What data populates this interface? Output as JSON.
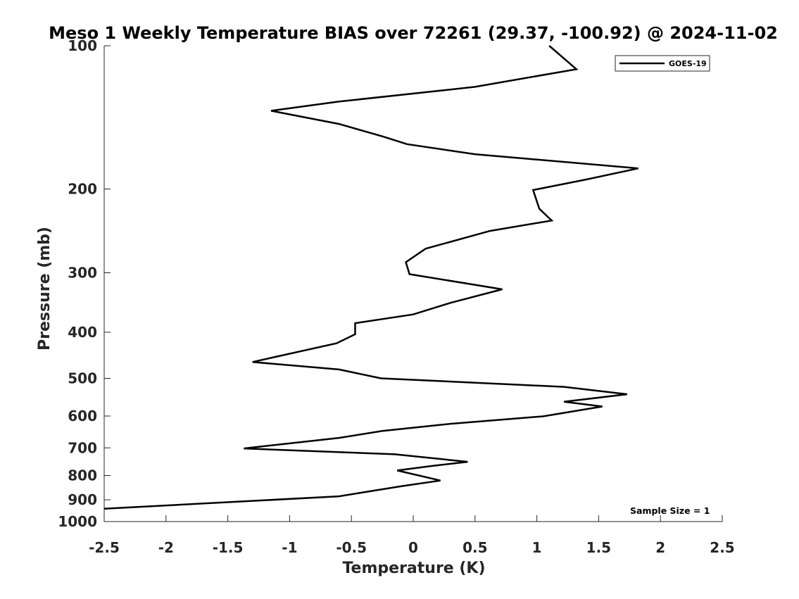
{
  "chart_data": {
    "type": "line",
    "title": "Meso 1 Weekly Temperature BIAS over 72261 (29.37, -100.92) @ 2024-11-02",
    "xlabel": "Temperature (K)",
    "ylabel": "Pressure (mb)",
    "xlim": [
      -2.5,
      2.5
    ],
    "ylim": [
      100,
      1000
    ],
    "y_scale": "log",
    "y_reversed": true,
    "x_ticks": [
      -2.5,
      -2,
      -1.5,
      -1,
      -0.5,
      0,
      0.5,
      1,
      1.5,
      2,
      2.5
    ],
    "x_tick_labels": [
      "-2.5",
      "-2",
      "-1.5",
      "-1",
      "-0.5",
      "0",
      "0.5",
      "1",
      "1.5",
      "2",
      "2.5"
    ],
    "y_ticks": [
      100,
      200,
      300,
      400,
      500,
      600,
      700,
      800,
      900,
      1000
    ],
    "y_tick_labels": [
      "100",
      "200",
      "300",
      "400",
      "500",
      "600",
      "700",
      "800",
      "900",
      "1000"
    ],
    "grid": false,
    "legend_position": "top-right",
    "annotation": "Sample Size = 1",
    "line_color": "#000000",
    "series": [
      {
        "name": "GOES-19",
        "color": "#000000",
        "points": [
          {
            "x": 1.1,
            "y": 100
          },
          {
            "x": 1.32,
            "y": 112
          },
          {
            "x": 0.5,
            "y": 122
          },
          {
            "x": -0.6,
            "y": 131
          },
          {
            "x": -1.15,
            "y": 137
          },
          {
            "x": -0.6,
            "y": 146
          },
          {
            "x": -0.25,
            "y": 155
          },
          {
            "x": -0.05,
            "y": 161
          },
          {
            "x": 0.5,
            "y": 169
          },
          {
            "x": 1.82,
            "y": 181
          },
          {
            "x": 1.4,
            "y": 191
          },
          {
            "x": 0.97,
            "y": 201
          },
          {
            "x": 1.02,
            "y": 220
          },
          {
            "x": 1.12,
            "y": 233
          },
          {
            "x": 0.62,
            "y": 245
          },
          {
            "x": 0.1,
            "y": 267
          },
          {
            "x": -0.06,
            "y": 285
          },
          {
            "x": -0.03,
            "y": 302
          },
          {
            "x": 0.72,
            "y": 325
          },
          {
            "x": 0.3,
            "y": 347
          },
          {
            "x": 0.0,
            "y": 367
          },
          {
            "x": -0.47,
            "y": 383
          },
          {
            "x": -0.47,
            "y": 404
          },
          {
            "x": -0.62,
            "y": 422
          },
          {
            "x": -1.3,
            "y": 462
          },
          {
            "x": -0.6,
            "y": 479
          },
          {
            "x": -0.26,
            "y": 500
          },
          {
            "x": 1.22,
            "y": 521
          },
          {
            "x": 1.73,
            "y": 540
          },
          {
            "x": 1.22,
            "y": 560
          },
          {
            "x": 1.53,
            "y": 573
          },
          {
            "x": 1.05,
            "y": 601
          },
          {
            "x": 0.3,
            "y": 623
          },
          {
            "x": -0.25,
            "y": 645
          },
          {
            "x": -0.6,
            "y": 667
          },
          {
            "x": -1.37,
            "y": 702
          },
          {
            "x": -0.15,
            "y": 722
          },
          {
            "x": 0.44,
            "y": 749
          },
          {
            "x": 0.15,
            "y": 764
          },
          {
            "x": -0.13,
            "y": 781
          },
          {
            "x": 0.22,
            "y": 820
          },
          {
            "x": -0.1,
            "y": 843
          },
          {
            "x": -0.4,
            "y": 868
          },
          {
            "x": -0.6,
            "y": 885
          },
          {
            "x": -2.5,
            "y": 940
          }
        ]
      }
    ]
  }
}
